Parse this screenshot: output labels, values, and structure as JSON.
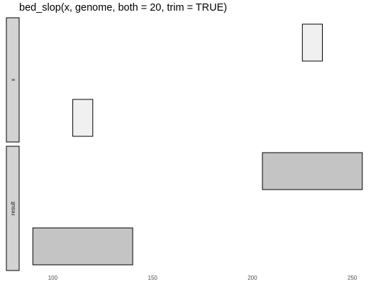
{
  "title": "bed_slop(x, genome, both = 20, trim = TRUE)",
  "chart_data": {
    "type": "interval-diagram",
    "title": "bed_slop(x, genome, both = 20, trim = TRUE)",
    "x_axis": {
      "ticks": [
        100,
        150,
        200,
        250
      ],
      "range": [
        86,
        259
      ]
    },
    "panels": [
      {
        "strip_label": "x",
        "fill": "#f0f0f0",
        "intervals": [
          {
            "start": 225,
            "end": 235
          },
          {
            "start": 110,
            "end": 120
          }
        ]
      },
      {
        "strip_label": "result",
        "fill": "#c4c4c4",
        "intervals": [
          {
            "start": 205,
            "end": 255
          },
          {
            "start": 90,
            "end": 140
          }
        ]
      }
    ],
    "grid": false
  }
}
